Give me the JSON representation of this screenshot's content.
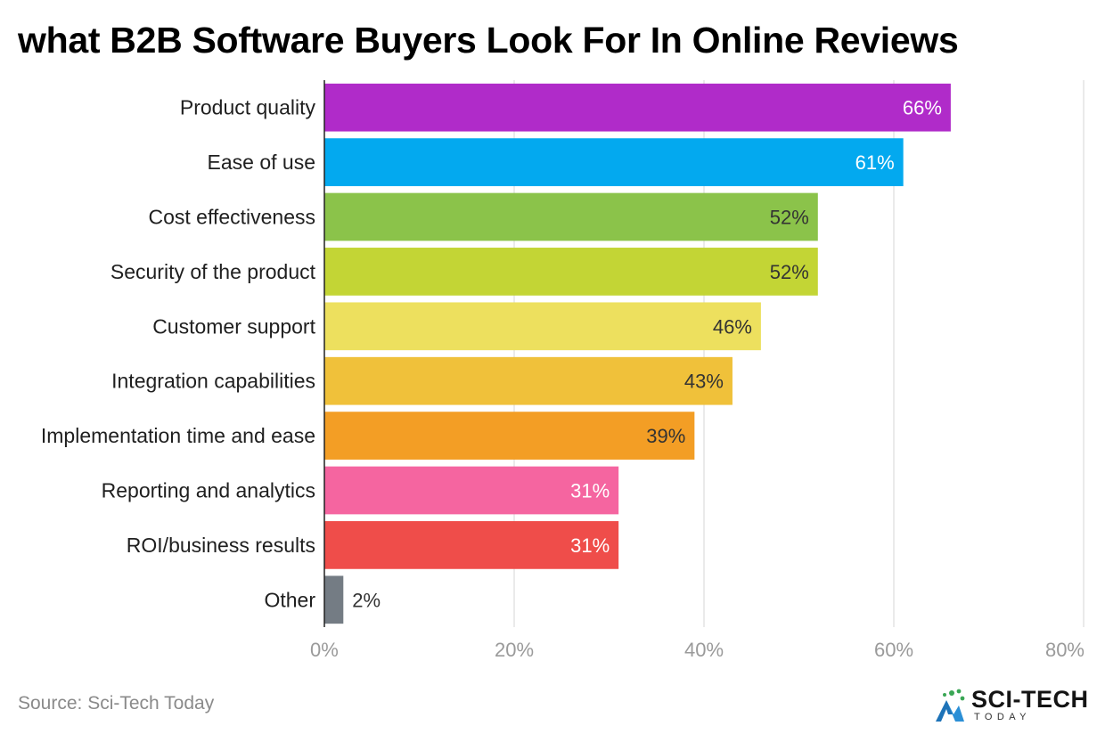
{
  "title": "what B2B Software Buyers Look For In Online Reviews",
  "source": "Source: Sci-Tech Today",
  "logo": {
    "name": "SCI-TECH",
    "sub": "TODAY"
  },
  "chart_data": {
    "type": "bar",
    "orientation": "horizontal",
    "categories": [
      "Product quality",
      "Ease of use",
      "Cost effectiveness",
      "Security of the product",
      "Customer support",
      "Integration capabilities",
      "Implementation time and ease",
      "Reporting and analytics",
      "ROI/business results",
      "Other"
    ],
    "values": [
      66,
      61,
      52,
      52,
      46,
      43,
      39,
      31,
      31,
      2
    ],
    "value_labels": [
      "66%",
      "61%",
      "52%",
      "52%",
      "46%",
      "43%",
      "39%",
      "31%",
      "31%",
      "2%"
    ],
    "colors": [
      "#b02bc9",
      "#03a9ef",
      "#8bc34a",
      "#c3d535",
      "#ede05e",
      "#f0c13a",
      "#f39e25",
      "#f565a0",
      "#ef4d4a",
      "#747c84"
    ],
    "value_label_colors": [
      "#ffffff",
      "#ffffff",
      "#333333",
      "#333333",
      "#333333",
      "#333333",
      "#333333",
      "#ffffff",
      "#ffffff",
      "#333333"
    ],
    "xlim": [
      0,
      80
    ],
    "xticks": [
      0,
      20,
      40,
      60,
      80
    ],
    "xtick_labels": [
      "0%",
      "20%",
      "40%",
      "60%",
      "80%"
    ],
    "grid": true,
    "legend": "none"
  }
}
